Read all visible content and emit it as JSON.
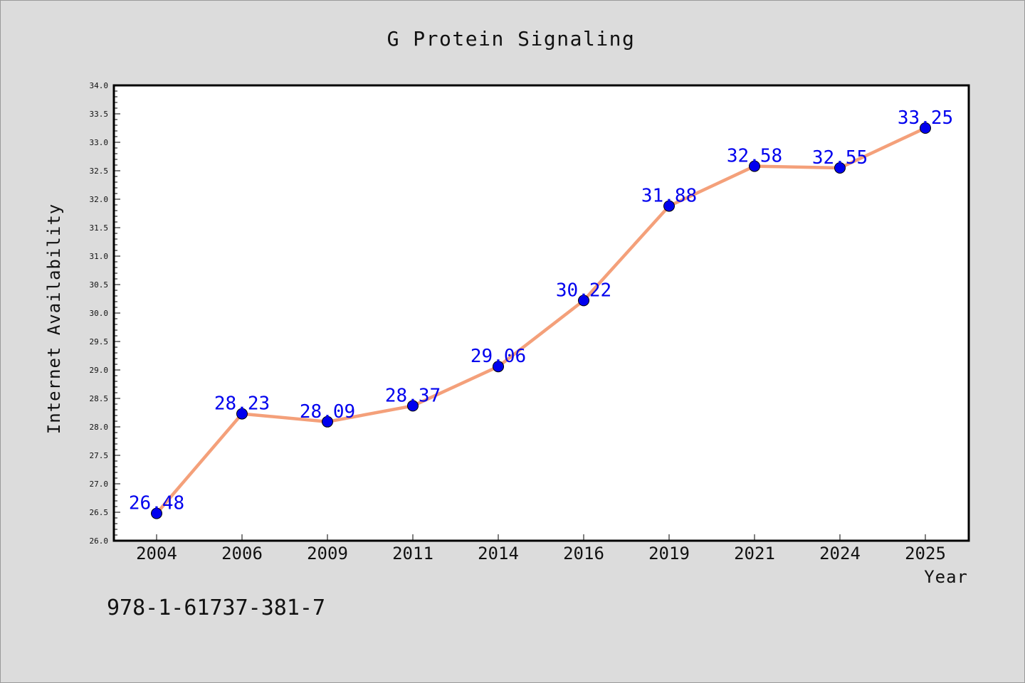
{
  "chart_data": {
    "type": "line",
    "title": "G Protein Signaling",
    "xlabel": "Year",
    "ylabel": "Internet Availability",
    "categories": [
      "2004",
      "2006",
      "2009",
      "2011",
      "2014",
      "2016",
      "2019",
      "2021",
      "2024",
      "2025"
    ],
    "series": [
      {
        "values": [
          26.48,
          28.23,
          28.09,
          28.37,
          29.06,
          30.22,
          31.88,
          32.58,
          32.55,
          33.25
        ],
        "line_color": "#f4a07a",
        "marker_color": "#0000ee"
      }
    ],
    "data_labels": [
      "26.48",
      "28.23",
      "28.09",
      "28.37",
      "29.06",
      "30.22",
      "31.88",
      "32.58",
      "32.55",
      "33.25"
    ],
    "ylim": [
      26.0,
      34.0
    ],
    "yticks": [
      "26.0",
      "26.5",
      "27.0",
      "27.5",
      "28.0",
      "28.5",
      "29.0",
      "29.5",
      "30.0",
      "30.5",
      "31.0",
      "31.5",
      "32.0",
      "32.5",
      "33.0",
      "33.5",
      "34.0"
    ],
    "grid": false,
    "legend": "none"
  },
  "footer_text": "978-1-61737-381-7"
}
